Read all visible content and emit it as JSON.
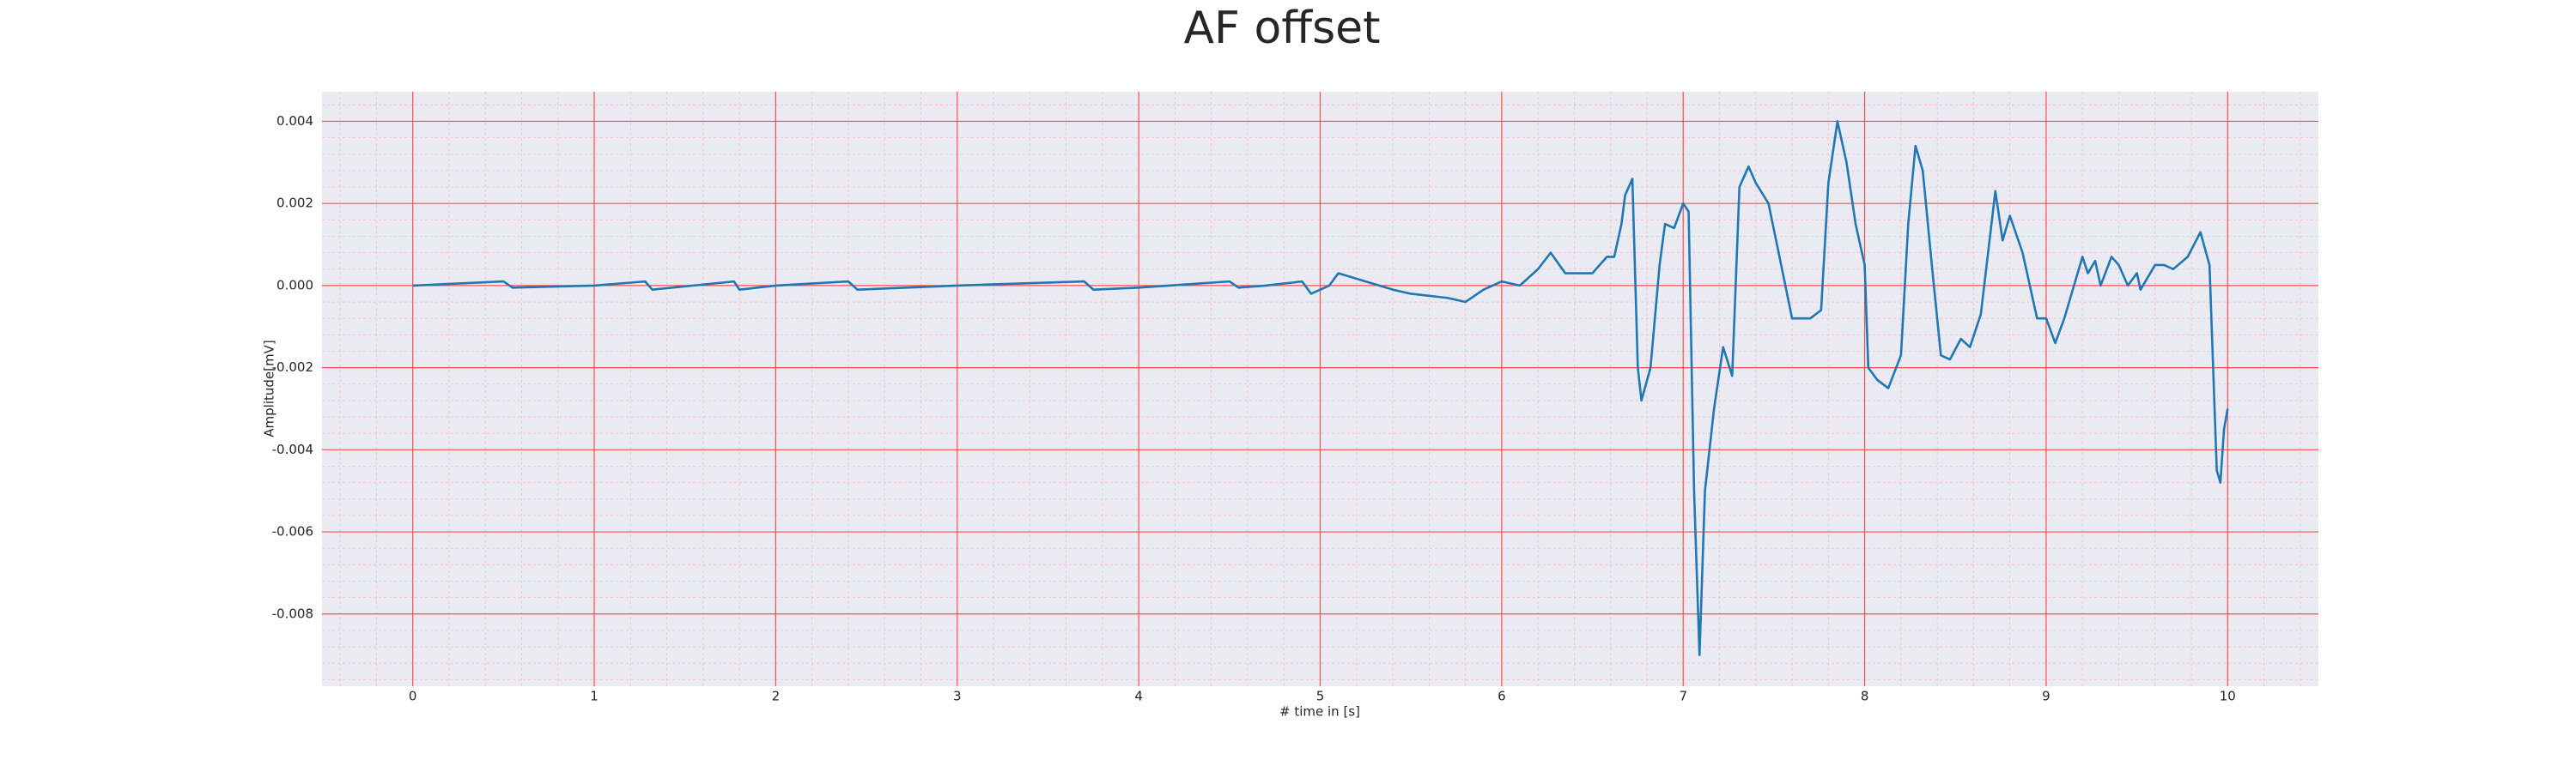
{
  "chart_data": {
    "type": "line",
    "title": "AF offset",
    "xlabel": "# time in [s]",
    "ylabel": "Amplitude[mV]",
    "color": "#1f77b4",
    "grid": true,
    "minor_grid": true,
    "xlim": [
      -0.5,
      10.5
    ],
    "ylim": [
      -0.00976,
      0.00472
    ],
    "xticks": [
      0,
      1,
      2,
      3,
      4,
      5,
      6,
      7,
      8,
      9,
      10
    ],
    "yticks": [
      -0.008,
      -0.006,
      -0.004,
      -0.002,
      {
        "value": 0,
        "label": "0.000"
      },
      0.002,
      0.004
    ],
    "x": [
      0,
      0.5,
      0.55,
      1,
      1.28,
      1.32,
      1.77,
      1.8,
      2,
      2.4,
      2.45,
      3,
      3.7,
      3.75,
      4,
      4.5,
      4.55,
      4.7,
      4.9,
      4.95,
      5.05,
      5.1,
      5.25,
      5.4,
      5.5,
      5.7,
      5.8,
      5.9,
      6,
      6.1,
      6.2,
      6.27,
      6.35,
      6.5,
      6.58,
      6.62,
      6.66,
      6.68,
      6.72,
      6.75,
      6.77,
      6.82,
      6.87,
      6.9,
      6.95,
      7.0,
      7.03,
      7.06,
      7.09,
      7.12,
      7.17,
      7.22,
      7.27,
      7.31,
      7.36,
      7.4,
      7.47,
      7.54,
      7.6,
      7.7,
      7.76,
      7.8,
      7.85,
      7.9,
      7.95,
      8.0,
      8.02,
      8.07,
      8.13,
      8.2,
      8.24,
      8.28,
      8.32,
      8.37,
      8.42,
      8.47,
      8.53,
      8.58,
      8.64,
      8.72,
      8.76,
      8.8,
      8.87,
      8.95,
      9.0,
      9.05,
      9.1,
      9.2,
      9.23,
      9.27,
      9.3,
      9.36,
      9.4,
      9.45,
      9.5,
      9.52,
      9.6,
      9.65,
      9.7,
      9.78,
      9.85,
      9.9,
      9.94,
      9.96,
      9.98,
      10
    ],
    "values": [
      0,
      0.0001,
      -5e-05,
      0,
      0.0001,
      -0.0001,
      0.0001,
      -0.0001,
      0,
      0.0001,
      -0.0001,
      0,
      0.0001,
      -0.0001,
      -5e-05,
      0.0001,
      -5e-05,
      0,
      0.0001,
      -0.0002,
      0,
      0.0003,
      0.0001,
      -0.0001,
      -0.0002,
      -0.0003,
      -0.0004,
      -0.0001,
      0.0001,
      0,
      0.0004,
      0.0008,
      0.0003,
      0.0003,
      0.0007,
      0.0007,
      0.0015,
      0.0022,
      0.0026,
      -0.002,
      -0.0028,
      -0.002,
      0.0005,
      0.0015,
      0.0014,
      0.002,
      0.0018,
      -0.005,
      -0.009,
      -0.005,
      -0.003,
      -0.0015,
      -0.0022,
      0.0024,
      0.0029,
      0.0025,
      0.002,
      0.0005,
      -0.0008,
      -0.0008,
      -0.0006,
      0.0025,
      0.004,
      0.003,
      0.0015,
      0.0005,
      -0.002,
      -0.0023,
      -0.0025,
      -0.0017,
      0.0015,
      0.0034,
      0.0028,
      0.0005,
      -0.0017,
      -0.0018,
      -0.0013,
      -0.0015,
      -0.0007,
      0.0023,
      0.0011,
      0.0017,
      0.0008,
      -0.0008,
      -0.0008,
      -0.0014,
      -0.0008,
      0.0007,
      0.0003,
      0.0006,
      0,
      0.0007,
      0.0005,
      0,
      0.0003,
      -0.0001,
      0.0005,
      0.0005,
      0.0004,
      0.0007,
      0.0013,
      0.0005,
      -0.0045,
      -0.0048,
      -0.0035,
      -0.003
    ]
  }
}
